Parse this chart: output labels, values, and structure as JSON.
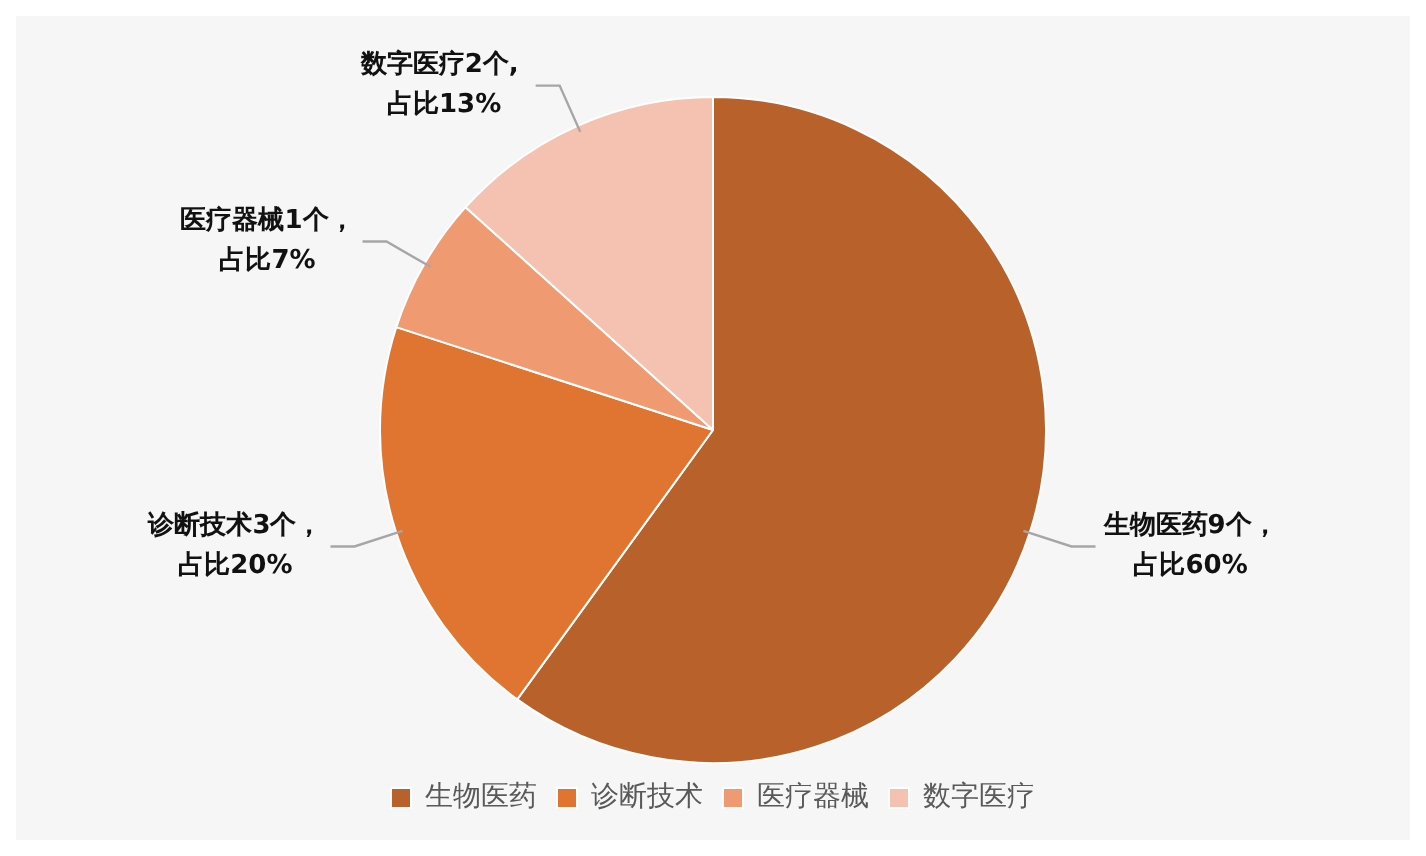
{
  "chart_data": {
    "type": "pie",
    "categories": [
      "生物医药",
      "诊断技术",
      "医疗器械",
      "数字医疗"
    ],
    "values": [
      9,
      3,
      1,
      2
    ],
    "colors": [
      "#b8612a",
      "#df7530",
      "#f09a72",
      "#f5c2b1"
    ],
    "value_labels": [
      "生物医药9个，占比60%",
      "诊断技术3个，占比20%",
      "医疗器械1个，占比7%",
      "数字医疗2个, 占比13%"
    ],
    "legend": "bottom"
  }
}
